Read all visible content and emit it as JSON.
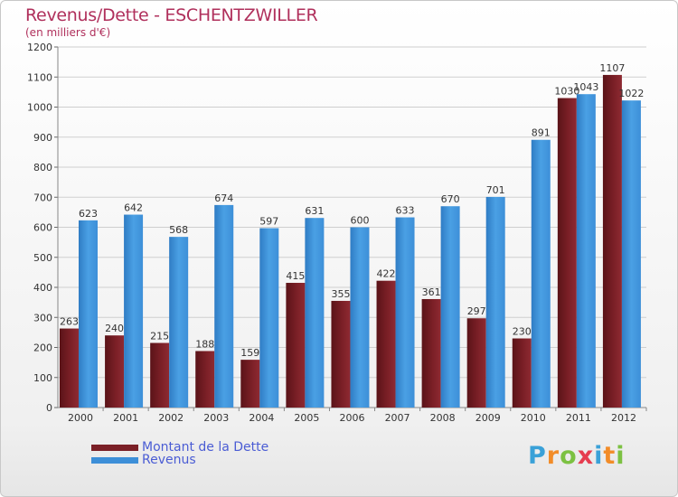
{
  "title": "Revenus/Dette - ESCHENTZWILLER",
  "subtitle": "(en milliers d'€)",
  "logo": {
    "letters": [
      "P",
      "r",
      "o",
      "x",
      "i",
      "t",
      "i"
    ],
    "colors": [
      "#3aa1d8",
      "#f28c28",
      "#7cc142",
      "#e63c4f",
      "#3aa1d8",
      "#f28c28",
      "#7cc142"
    ]
  },
  "colors": {
    "debt": "#7a1f26",
    "revenue": "#3d8fd8",
    "title": "#b0305c",
    "legend_text": "#4a5cd4"
  },
  "chart_data": {
    "type": "bar",
    "categories": [
      "2000",
      "2001",
      "2002",
      "2003",
      "2004",
      "2005",
      "2006",
      "2007",
      "2008",
      "2009",
      "2010",
      "2011",
      "2012"
    ],
    "series": [
      {
        "name": "Montant de la Dette",
        "values": [
          263,
          240,
          215,
          188,
          159,
          415,
          355,
          422,
          361,
          297,
          230,
          1030,
          1107
        ]
      },
      {
        "name": "Revenus",
        "values": [
          623,
          642,
          568,
          674,
          597,
          631,
          600,
          633,
          670,
          701,
          891,
          1043,
          1022
        ]
      }
    ],
    "ylim": [
      0,
      1200
    ],
    "yticks": [
      0,
      100,
      200,
      300,
      400,
      500,
      600,
      700,
      800,
      900,
      1000,
      1100,
      1200
    ],
    "grid": "horizontal",
    "legend_position": "bottom-left"
  }
}
